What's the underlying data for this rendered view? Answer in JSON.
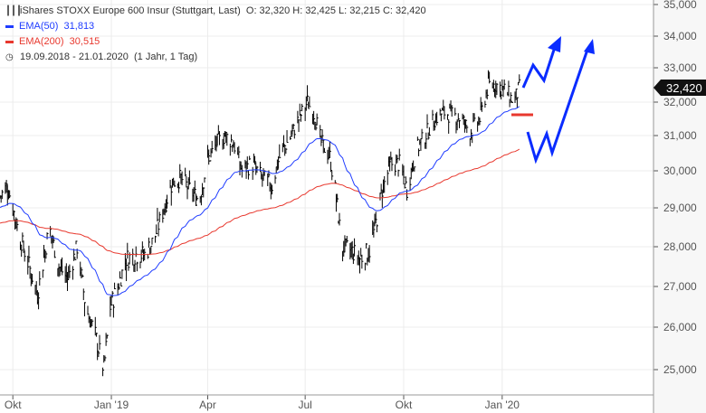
{
  "header": {
    "title": "iShares STOXX Europe 600 Insur (Stuttgart, Last)",
    "ohlc": "O: 32,320  H: 32,425  L: 32,215  C: 32,420",
    "ema50_label": "EMA(50)",
    "ema50_value": "31,813",
    "ema200_label": "EMA(200)",
    "ema200_value": "30,515",
    "range": "19.09.2018 - 21.01.2020",
    "period": "(1 Jahr, 1 Tag)"
  },
  "colors": {
    "ema50": "#1f3cff",
    "ema200": "#e8382e",
    "arrows": "#0a2cff",
    "bars": "#000000"
  },
  "chart_data": {
    "type": "ohlc",
    "title": "iShares STOXX Europe 600 Insur (Stuttgart, Last)",
    "ylim": [
      25000,
      35000
    ],
    "y_ticks": [
      {
        "v": 35000,
        "l": "35,000"
      },
      {
        "v": 34000,
        "l": "34,000"
      },
      {
        "v": 33000,
        "l": "33,000"
      },
      {
        "v": 32000,
        "l": "32,000"
      },
      {
        "v": 31000,
        "l": "31,000"
      },
      {
        "v": 30000,
        "l": "30,000"
      },
      {
        "v": 29000,
        "l": "29,000"
      },
      {
        "v": 28000,
        "l": "28,000"
      },
      {
        "v": 27000,
        "l": "27,000"
      },
      {
        "v": 26000,
        "l": "26,000"
      },
      {
        "v": 25000,
        "l": "25,000"
      }
    ],
    "x_ticks": [
      {
        "day": 12,
        "l": "Okt"
      },
      {
        "day": 104,
        "l": "Jan '19"
      },
      {
        "day": 194,
        "l": "Apr"
      },
      {
        "day": 285,
        "l": "Jul"
      },
      {
        "day": 377,
        "l": "Okt"
      },
      {
        "day": 469,
        "l": "Jan '20"
      }
    ],
    "last_price": 32420,
    "last_label": "32,420",
    "close_points": [
      [
        0,
        29300
      ],
      [
        7,
        29600
      ],
      [
        17,
        28400
      ],
      [
        25,
        27700
      ],
      [
        35,
        26800
      ],
      [
        46,
        28500
      ],
      [
        55,
        27500
      ],
      [
        63,
        27200
      ],
      [
        72,
        28000
      ],
      [
        80,
        26500
      ],
      [
        89,
        25800
      ],
      [
        97,
        25000
      ],
      [
        103,
        26500
      ],
      [
        110,
        27000
      ],
      [
        118,
        27700
      ],
      [
        127,
        27800
      ],
      [
        135,
        27800
      ],
      [
        144,
        28200
      ],
      [
        152,
        28900
      ],
      [
        161,
        29700
      ],
      [
        169,
        29800
      ],
      [
        177,
        29500
      ],
      [
        186,
        29200
      ],
      [
        194,
        30300
      ],
      [
        203,
        30800
      ],
      [
        210,
        31000
      ],
      [
        218,
        30800
      ],
      [
        226,
        30000
      ],
      [
        235,
        30200
      ],
      [
        245,
        29800
      ],
      [
        254,
        29600
      ],
      [
        262,
        30500
      ],
      [
        272,
        31000
      ],
      [
        279,
        31500
      ],
      [
        287,
        32000
      ],
      [
        294,
        31600
      ],
      [
        300,
        30800
      ],
      [
        308,
        30400
      ],
      [
        314,
        29300
      ],
      [
        319,
        28000
      ],
      [
        328,
        27900
      ],
      [
        336,
        27700
      ],
      [
        345,
        27900
      ],
      [
        351,
        28600
      ],
      [
        357,
        29500
      ],
      [
        365,
        30200
      ],
      [
        373,
        30200
      ],
      [
        380,
        29500
      ],
      [
        389,
        30600
      ],
      [
        397,
        31000
      ],
      [
        406,
        31500
      ],
      [
        414,
        31700
      ],
      [
        423,
        31600
      ],
      [
        431,
        31500
      ],
      [
        439,
        31100
      ],
      [
        448,
        31500
      ],
      [
        456,
        32500
      ],
      [
        465,
        32500
      ],
      [
        473,
        32300
      ],
      [
        480,
        32000
      ],
      [
        485,
        32420
      ]
    ]
  }
}
